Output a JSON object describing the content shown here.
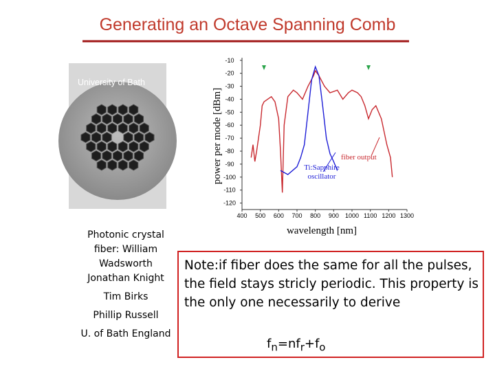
{
  "title": "Generating an Octave Spanning Comb",
  "image_label": "University of Bath",
  "chart_data": {
    "type": "line",
    "ylabel": "power per mode [dBm]",
    "xlabel": "wavelength [nm]",
    "xlim": [
      400,
      1300
    ],
    "xticks": [
      400,
      500,
      600,
      700,
      800,
      900,
      1000,
      1100,
      1200,
      1300
    ],
    "ylim": [
      -125,
      -8
    ],
    "yticks": [
      -10,
      -20,
      -30,
      -40,
      -50,
      -60,
      -70,
      -80,
      -90,
      -100,
      -110,
      -120
    ],
    "series": [
      {
        "name": "fiber output",
        "color": "#c8282e",
        "x": [
          450,
          460,
          470,
          480,
          500,
          510,
          520,
          540,
          560,
          580,
          600,
          610,
          620,
          630,
          650,
          680,
          700,
          730,
          760,
          790,
          800,
          820,
          850,
          880,
          920,
          950,
          980,
          1000,
          1030,
          1050,
          1070,
          1090,
          1110,
          1130,
          1160,
          1190,
          1210,
          1220
        ],
        "values": [
          -85,
          -75,
          -88,
          -80,
          -60,
          -45,
          -42,
          -40,
          -38,
          -42,
          -55,
          -80,
          -112,
          -60,
          -38,
          -33,
          -35,
          -40,
          -30,
          -22,
          -18,
          -22,
          -30,
          -35,
          -33,
          -40,
          -35,
          -33,
          -35,
          -38,
          -45,
          -55,
          -48,
          -45,
          -55,
          -75,
          -85,
          -100
        ]
      },
      {
        "name": "Ti:Sapphire oscillator",
        "color": "#1c1cd6",
        "x": [
          610,
          650,
          700,
          720,
          740,
          760,
          780,
          800,
          820,
          840,
          860,
          880,
          900,
          920
        ],
        "values": [
          -95,
          -98,
          -92,
          -85,
          -75,
          -50,
          -25,
          -15,
          -22,
          -45,
          -70,
          -82,
          -88,
          -95
        ]
      }
    ]
  },
  "caption": [
    "Photonic crystal fiber: William Wadsworth",
    "Jonathan Knight",
    "Tim Birks",
    "Phillip Russell",
    "U. of Bath England"
  ],
  "note": "Note:if fiber does the same for all the pulses, the field stays stricly periodic. This property is the only one necessarily to derive",
  "formula": {
    "f1": "f",
    "s1": "n",
    "m1": "=nf",
    "s2": "r",
    "m2": "+f",
    "s3": "o"
  }
}
